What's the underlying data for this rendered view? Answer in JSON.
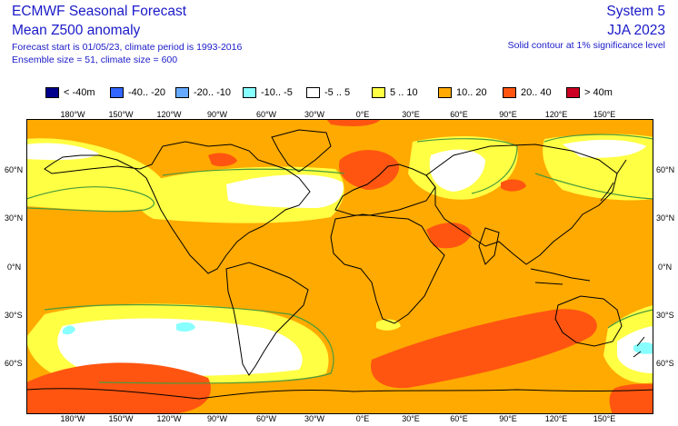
{
  "header": {
    "title_line1": "ECMWF Seasonal Forecast",
    "title_line2": "Mean Z500 anomaly",
    "info_line1": "Forecast start is 01/05/23, climate period is 1993-2016",
    "info_line2": "Ensemble size = 51, climate size = 600",
    "system": "System 5",
    "season": "JJA 2023",
    "significance_note": "Solid contour at 1% significance level"
  },
  "legend": [
    {
      "label": "< -40m",
      "color": "#00008c"
    },
    {
      "label": "-40.. -20",
      "color": "#3366ff"
    },
    {
      "label": "-20.. -10",
      "color": "#66aaff"
    },
    {
      "label": "-10.. -5",
      "color": "#88ffff"
    },
    {
      "label": "-5 .. 5",
      "color": "#ffffff"
    },
    {
      "label": "5 .. 10",
      "color": "#ffff44"
    },
    {
      "label": "10.. 20",
      "color": "#ffaa00"
    },
    {
      "label": "20.. 40",
      "color": "#ff5511"
    },
    {
      "label": "> 40m",
      "color": "#cc0022"
    }
  ],
  "axes": {
    "longitude_labels": [
      "180°W",
      "150°W",
      "120°W",
      "90°W",
      "60°W",
      "30°W",
      "0°E",
      "30°E",
      "60°E",
      "90°E",
      "120°E",
      "150°E"
    ],
    "latitude_labels": [
      "60°N",
      "30°N",
      "0°N",
      "30°S",
      "60°S"
    ]
  },
  "colors": {
    "background_anomaly": "#ffaa00",
    "contour": "#4a9a3a",
    "coast": "#000000"
  }
}
